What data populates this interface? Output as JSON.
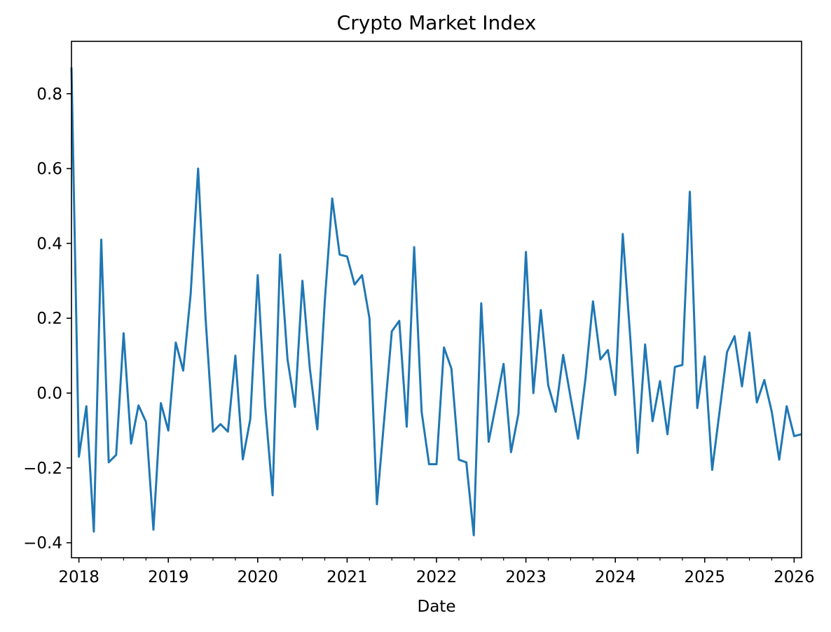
{
  "chart_data": {
    "type": "line",
    "title": "Crypto Market Index",
    "xlabel": "Date",
    "ylabel": "",
    "x_ticks": [
      "2018",
      "2019",
      "2020",
      "2021",
      "2022",
      "2023",
      "2024",
      "2025",
      "2026"
    ],
    "y_ticks": [
      "0.8",
      "0.6",
      "0.4",
      "0.2",
      "0.0",
      "−0.2",
      "−0.4"
    ],
    "ylim": [
      -0.44,
      0.94
    ],
    "xlim": [
      "2017-12",
      "2026-02"
    ],
    "grid": false,
    "legend": "none",
    "line_color": "#1f77b4",
    "series": [
      {
        "x": [
          "2017-12",
          "2018-01",
          "2018-02",
          "2018-03",
          "2018-04",
          "2018-05",
          "2018-06",
          "2018-07",
          "2018-08",
          "2018-09",
          "2018-10",
          "2018-11",
          "2018-12",
          "2019-01",
          "2019-02",
          "2019-03",
          "2019-04",
          "2019-05",
          "2019-06",
          "2019-07",
          "2019-08",
          "2019-09",
          "2019-10",
          "2019-11",
          "2019-12",
          "2020-01",
          "2020-02",
          "2020-03",
          "2020-04",
          "2020-05",
          "2020-06",
          "2020-07",
          "2020-08",
          "2020-09",
          "2020-10",
          "2020-11",
          "2020-12",
          "2021-01",
          "2021-02",
          "2021-03",
          "2021-04",
          "2021-05",
          "2021-06",
          "2021-07",
          "2021-08",
          "2021-09",
          "2021-10",
          "2021-11",
          "2021-12",
          "2022-01",
          "2022-02",
          "2022-03",
          "2022-04",
          "2022-05",
          "2022-06",
          "2022-07",
          "2022-08",
          "2022-09",
          "2022-10",
          "2022-11",
          "2022-12",
          "2023-01",
          "2023-02",
          "2023-03",
          "2023-04",
          "2023-05",
          "2023-06",
          "2023-07",
          "2023-08",
          "2023-09",
          "2023-10",
          "2023-11",
          "2023-12",
          "2024-01",
          "2024-02",
          "2024-03",
          "2024-04",
          "2024-05",
          "2024-06",
          "2024-07",
          "2024-08",
          "2024-09",
          "2024-10",
          "2024-11",
          "2024-12",
          "2025-01",
          "2025-02",
          "2025-03",
          "2025-04",
          "2025-05",
          "2025-06",
          "2025-07",
          "2025-08",
          "2025-09",
          "2025-10",
          "2025-11",
          "2025-12",
          "2026-01",
          "2026-02"
        ],
        "values": [
          0.87,
          -0.17,
          -0.035,
          -0.37,
          0.41,
          -0.185,
          -0.165,
          0.16,
          -0.135,
          -0.033,
          -0.077,
          -0.365,
          -0.027,
          -0.1,
          0.135,
          0.06,
          0.265,
          0.6,
          0.2,
          -0.103,
          -0.083,
          -0.103,
          0.1,
          -0.177,
          -0.07,
          0.315,
          -0.035,
          -0.273,
          0.37,
          0.09,
          -0.037,
          0.3,
          0.065,
          -0.097,
          0.245,
          0.52,
          0.37,
          0.365,
          0.29,
          0.315,
          0.2,
          -0.297,
          -0.065,
          0.165,
          0.193,
          -0.09,
          0.39,
          -0.05,
          -0.19,
          -0.19,
          0.122,
          0.065,
          -0.178,
          -0.185,
          -0.38,
          0.24,
          -0.13,
          -0.028,
          0.078,
          -0.158,
          -0.055,
          0.377,
          0.0,
          0.222,
          0.02,
          -0.05,
          0.102,
          -0.012,
          -0.122,
          0.04,
          0.245,
          0.09,
          0.115,
          -0.005,
          0.425,
          0.15,
          -0.16,
          0.13,
          -0.075,
          0.032,
          -0.11,
          0.07,
          0.075,
          0.538,
          -0.04,
          0.098,
          -0.205,
          -0.048,
          0.11,
          0.152,
          0.018,
          0.162,
          -0.025,
          0.035,
          -0.05,
          -0.178,
          -0.035,
          -0.115,
          -0.11
        ]
      }
    ]
  }
}
